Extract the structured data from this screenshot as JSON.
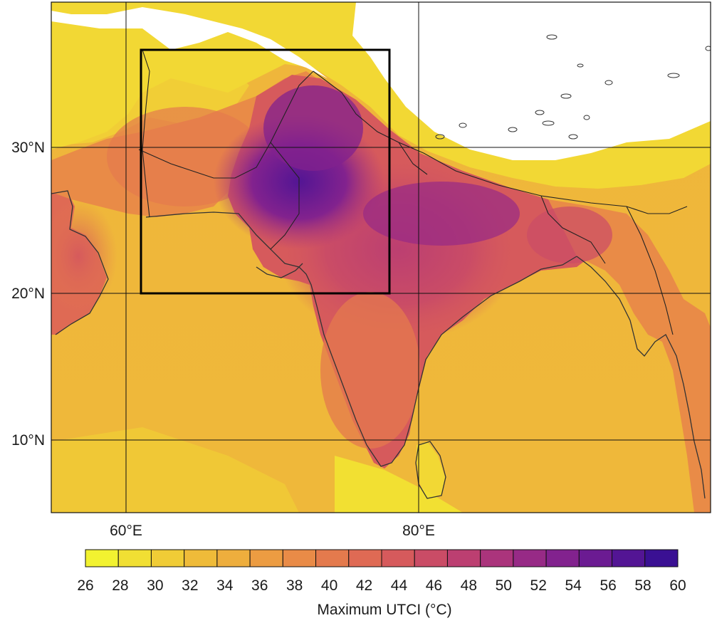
{
  "map": {
    "latitude_labels": [
      "30°N",
      "20°N",
      "10°N"
    ],
    "longitude_labels": [
      "60°E",
      "80°E"
    ],
    "colorbar": {
      "title": "Maximum UTCI (°C)",
      "tick_labels": [
        "26",
        "28",
        "30",
        "32",
        "34",
        "36",
        "38",
        "40",
        "42",
        "44",
        "46",
        "48",
        "50",
        "52",
        "54",
        "56",
        "58",
        "60"
      ],
      "colors": [
        "#f2f230",
        "#f1df33",
        "#f0cc36",
        "#efbb39",
        "#eeae3d",
        "#ec9c42",
        "#e98b47",
        "#e47a4d",
        "#df6a54",
        "#d65a5c",
        "#ca4c66",
        "#bc3f71",
        "#ab347c",
        "#972a86",
        "#82228e",
        "#6b1b92",
        "#531594",
        "#3a1093"
      ]
    },
    "legend_unit": "°C",
    "region_box": {
      "lon_min": 61,
      "lon_max": 78,
      "lat_min": 20,
      "lat_max": 37
    }
  }
}
